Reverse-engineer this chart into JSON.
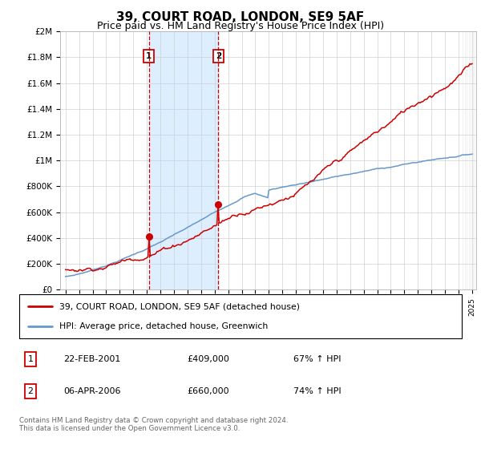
{
  "title": "39, COURT ROAD, LONDON, SE9 5AF",
  "subtitle": "Price paid vs. HM Land Registry's House Price Index (HPI)",
  "ylim": [
    0,
    2000000
  ],
  "yticks": [
    0,
    200000,
    400000,
    600000,
    800000,
    1000000,
    1200000,
    1400000,
    1600000,
    1800000,
    2000000
  ],
  "ytick_labels": [
    "£0",
    "£200K",
    "£400K",
    "£600K",
    "£800K",
    "£1M",
    "£1.2M",
    "£1.4M",
    "£1.6M",
    "£1.8M",
    "£2M"
  ],
  "year_start": 1995,
  "year_end": 2025,
  "sale1_date": "22-FEB-2001",
  "sale1_price": 409000,
  "sale1_hpi_text": "67% ↑ HPI",
  "sale1_x": 2001.14,
  "sale2_date": "06-APR-2006",
  "sale2_price": 660000,
  "sale2_hpi_text": "74% ↑ HPI",
  "sale2_x": 2006.27,
  "hpi_color": "#6699cc",
  "price_color": "#cc0000",
  "vline_color": "#cc0000",
  "shade_color": "#ddeeff",
  "legend_label_price": "39, COURT ROAD, LONDON, SE9 5AF (detached house)",
  "legend_label_hpi": "HPI: Average price, detached house, Greenwich",
  "footer": "Contains HM Land Registry data © Crown copyright and database right 2024.\nThis data is licensed under the Open Government Licence v3.0.",
  "title_fontsize": 11,
  "subtitle_fontsize": 9
}
